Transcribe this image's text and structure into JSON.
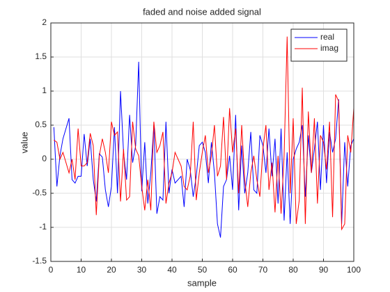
{
  "chart_data": {
    "type": "line",
    "title": "faded and noise added signal",
    "x_label": "sample",
    "y_label": "value",
    "x": [
      1,
      2,
      3,
      4,
      5,
      6,
      7,
      8,
      9,
      10,
      11,
      12,
      13,
      14,
      15,
      16,
      17,
      18,
      19,
      20,
      21,
      22,
      23,
      24,
      25,
      26,
      27,
      28,
      29,
      30,
      31,
      32,
      33,
      34,
      35,
      36,
      37,
      38,
      39,
      40,
      41,
      42,
      43,
      44,
      45,
      46,
      47,
      48,
      49,
      50,
      51,
      52,
      53,
      54,
      55,
      56,
      57,
      58,
      59,
      60,
      61,
      62,
      63,
      64,
      65,
      66,
      67,
      68,
      69,
      70,
      71,
      72,
      73,
      74,
      75,
      76,
      77,
      78,
      79,
      80,
      81,
      82,
      83,
      84,
      85,
      86,
      87,
      88,
      89,
      90,
      91,
      92,
      93,
      94,
      95,
      96,
      97,
      98,
      99,
      100
    ],
    "series": [
      {
        "name": "real",
        "color": "#0000ff",
        "values": [
          0.47,
          -0.4,
          0.05,
          0.3,
          0.45,
          0.6,
          -0.3,
          -0.35,
          -0.25,
          -0.25,
          0.37,
          -0.1,
          0.3,
          -0.3,
          -0.62,
          0.08,
          0.03,
          -0.45,
          -0.7,
          -0.4,
          0.47,
          -0.5,
          1.0,
          0.1,
          -0.3,
          0.65,
          -0.05,
          0.2,
          1.43,
          -0.47,
          0.25,
          -0.65,
          -0.2,
          0.5,
          -0.8,
          -0.55,
          -0.6,
          0.55,
          -0.5,
          -0.15,
          -0.35,
          -0.3,
          -0.25,
          -0.7,
          0.0,
          -0.15,
          -0.55,
          -0.25,
          0.2,
          0.25,
          0.1,
          -0.35,
          0.25,
          -0.2,
          -0.95,
          -1.15,
          -0.4,
          -0.3,
          0.05,
          -0.45,
          0.65,
          -0.75,
          0.2,
          -0.5,
          -0.2,
          0.4,
          -0.45,
          -0.5,
          0.35,
          0.2,
          -0.2,
          0.45,
          -0.25,
          0.3,
          -0.65,
          0.45,
          -0.9,
          0.1,
          -0.95,
          0.0,
          0.15,
          0.25,
          0.5,
          -0.55,
          0.35,
          -0.2,
          0.15,
          0.55,
          -0.45,
          0.5,
          -0.35,
          0.4,
          0.1,
          0.3,
          0.88,
          -0.95,
          0.25,
          -0.4,
          0.2,
          0.3
        ]
      },
      {
        "name": "imag",
        "color": "#ff0000",
        "values": [
          0.28,
          0.25,
          0.0,
          0.1,
          -0.05,
          -0.2,
          0.0,
          -0.3,
          0.45,
          -0.1,
          -0.1,
          -0.05,
          0.38,
          0.2,
          -0.82,
          0.05,
          0.3,
          0.1,
          -0.2,
          0.55,
          0.35,
          0.4,
          -0.62,
          0.15,
          -0.6,
          -0.55,
          0.55,
          0.15,
          0.05,
          -0.4,
          -0.75,
          -0.3,
          -0.75,
          0.55,
          0.1,
          0.2,
          0.4,
          -0.65,
          -0.35,
          -0.2,
          0.1,
          0.0,
          -0.1,
          -0.4,
          -0.45,
          -0.25,
          0.55,
          -0.6,
          -0.2,
          0.1,
          0.35,
          -0.2,
          0.05,
          0.5,
          -0.25,
          -0.1,
          0.62,
          -0.3,
          0.75,
          0.1,
          0.45,
          -0.5,
          0.5,
          -0.3,
          -0.7,
          -0.2,
          0.05,
          -0.3,
          -0.55,
          0.15,
          0.5,
          -0.45,
          -0.05,
          -0.78,
          0.05,
          -0.8,
          0.05,
          1.8,
          -0.5,
          0.6,
          -0.95,
          -0.6,
          1.05,
          -0.95,
          0.7,
          -0.2,
          0.6,
          -0.65,
          0.35,
          0.25,
          -0.15,
          0.55,
          -0.85,
          0.95,
          0.85,
          -1.03,
          -0.95,
          0.35,
          0.1,
          0.75
        ]
      }
    ],
    "xlim": [
      0,
      100
    ],
    "xticks": [
      0,
      10,
      20,
      30,
      40,
      50,
      60,
      70,
      80,
      90,
      100
    ],
    "ylim": [
      -1.5,
      2
    ],
    "yticks": [
      -1.5,
      -1,
      -0.5,
      0,
      0.5,
      1,
      1.5,
      2
    ],
    "grid": true,
    "legend": "northeast"
  }
}
